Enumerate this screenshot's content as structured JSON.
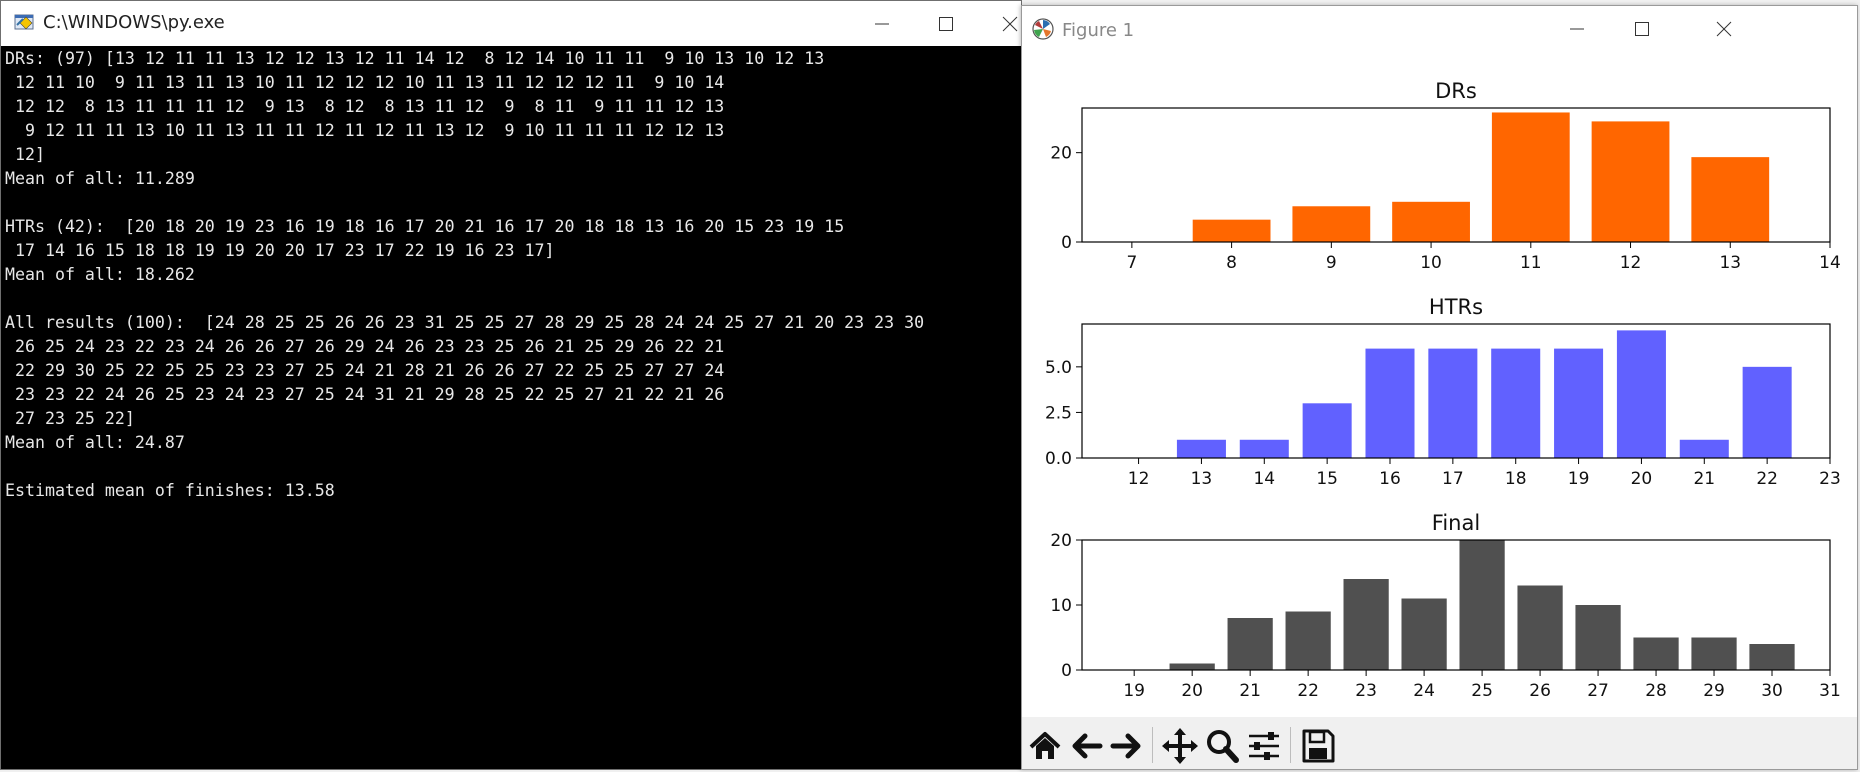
{
  "console": {
    "title": "C:\\WINDOWS\\py.exe",
    "lines": [
      "DRs: (97) [13 12 11 11 13 12 12 13 12 11 14 12  8 12 14 10 11 11  9 10 13 10 12 13",
      " 12 11 10  9 11 13 11 13 10 11 12 12 12 10 11 13 11 12 12 12 11  9 10 14",
      " 12 12  8 13 11 11 11 12  9 13  8 12  8 13 11 12  9  8 11  9 11 11 12 13",
      "  9 12 11 11 13 10 11 13 11 11 12 11 12 11 13 12  9 10 11 11 11 12 12 13",
      " 12]",
      "Mean of all: 11.289",
      "",
      "HTRs (42):  [20 18 20 19 23 16 19 18 16 17 20 21 16 17 20 18 18 13 16 20 15 23 19 15",
      " 17 14 16 15 18 18 19 19 20 20 17 23 17 22 19 16 23 17]",
      "Mean of all: 18.262",
      "",
      "All results (100):  [24 28 25 25 26 26 23 31 25 25 27 28 29 25 28 24 24 25 27 21 20 23 23 30",
      " 26 25 24 23 22 23 24 26 26 27 26 29 24 26 23 23 25 26 21 25 29 26 22 21",
      " 22 29 30 25 22 25 25 23 23 27 25 24 21 28 21 26 26 27 22 25 25 27 27 24",
      " 23 23 22 24 26 25 23 24 23 27 25 24 31 21 29 28 25 22 25 27 21 22 21 26",
      " 27 23 25 22]",
      "Mean of all: 24.87",
      "",
      "Estimated mean of finishes: 13.58"
    ]
  },
  "figure": {
    "title": "Figure 1",
    "toolbar": [
      "home-icon",
      "back-arrow-icon",
      "forward-arrow-icon",
      "pan-icon",
      "zoom-icon",
      "configure-subplots-icon",
      "save-icon"
    ]
  },
  "chart_data": [
    {
      "type": "bar",
      "title": "DRs",
      "x": [
        8,
        9,
        10,
        11,
        12,
        13
      ],
      "values": [
        5,
        8,
        9,
        29,
        27,
        19
      ],
      "xlim": [
        6.5,
        14
      ],
      "ylim": [
        0,
        30
      ],
      "xticks": [
        "7",
        "8",
        "9",
        "10",
        "11",
        "12",
        "13",
        "14"
      ],
      "xtick_values": [
        7,
        8,
        9,
        10,
        11,
        12,
        13,
        14
      ],
      "yticks": [
        "0",
        "20"
      ],
      "ytick_values": [
        0,
        20
      ],
      "color": "#ff6600"
    },
    {
      "type": "bar",
      "title": "HTRs",
      "x": [
        13,
        14,
        15,
        16,
        17,
        18,
        19,
        20,
        21,
        22
      ],
      "values": [
        1,
        1,
        3,
        6,
        6,
        6,
        6,
        7,
        1,
        5
      ],
      "xlim": [
        11.1,
        23
      ],
      "ylim": [
        0,
        7.35
      ],
      "xticks": [
        "12",
        "13",
        "14",
        "15",
        "16",
        "17",
        "18",
        "19",
        "20",
        "21",
        "22",
        "23"
      ],
      "xtick_values": [
        12,
        13,
        14,
        15,
        16,
        17,
        18,
        19,
        20,
        21,
        22,
        23
      ],
      "yticks": [
        "0.0",
        "2.5",
        "5.0"
      ],
      "ytick_values": [
        0,
        2.5,
        5
      ],
      "color": "#6161ff"
    },
    {
      "type": "bar",
      "title": "Final",
      "x": [
        20,
        21,
        22,
        23,
        24,
        25,
        26,
        27,
        28,
        29,
        30
      ],
      "values": [
        1,
        8,
        9,
        14,
        11,
        20,
        13,
        10,
        5,
        5,
        4
      ],
      "xlim": [
        18.1,
        31
      ],
      "ylim": [
        0,
        20
      ],
      "xticks": [
        "19",
        "20",
        "21",
        "22",
        "23",
        "24",
        "25",
        "26",
        "27",
        "28",
        "29",
        "30",
        "31"
      ],
      "xtick_values": [
        19,
        20,
        21,
        22,
        23,
        24,
        25,
        26,
        27,
        28,
        29,
        30,
        31
      ],
      "yticks": [
        "0",
        "10",
        "20"
      ],
      "ytick_values": [
        0,
        10,
        20
      ],
      "color": "#505050"
    }
  ]
}
